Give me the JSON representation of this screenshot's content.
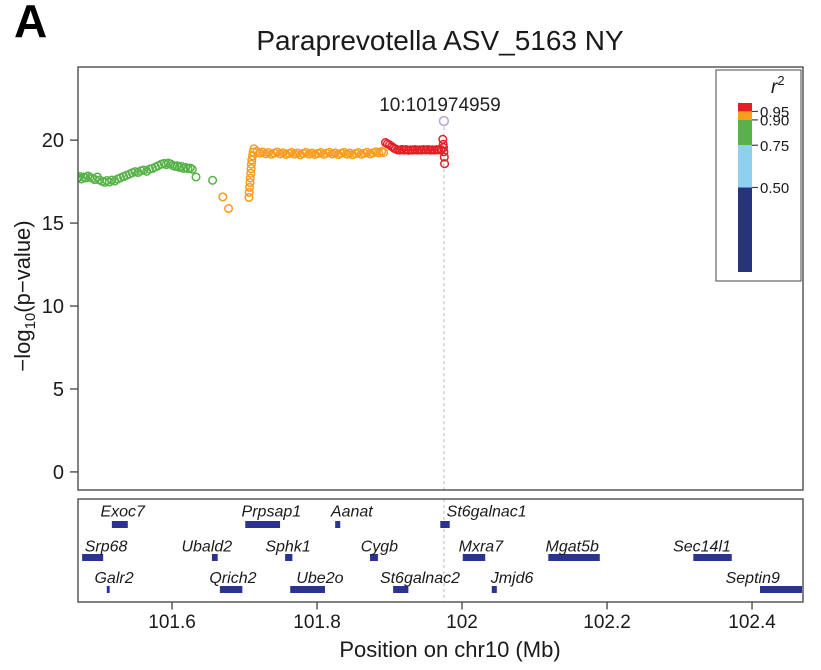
{
  "panel_label": "A",
  "title": "Paraprevotella ASV_5163 NY",
  "axes": {
    "x_label": "Position on chr10 (Mb)",
    "y_label_pre": "−log",
    "y_label_sub": "10",
    "y_label_post": "(p−value)",
    "x_tick_labels": [
      "101.6",
      "101.8",
      "102",
      "102.2",
      "102.4"
    ],
    "y_tick_labels": [
      "0",
      "5",
      "10",
      "15",
      "20"
    ]
  },
  "annotation": {
    "lead_label": "10:101974959"
  },
  "legend": {
    "title_base": "r",
    "title_sup": "2",
    "tick_labels": [
      "0.95",
      "0.90",
      "0.75",
      "0.50"
    ]
  },
  "colors": {
    "red": "#e31f26",
    "orange": "#f79c1d",
    "green": "#57b349",
    "lightblue": "#8fd0ee",
    "navy": "#28337e",
    "lead": "#b7a6d7",
    "gene_bar": "#2a3490",
    "dash": "#c9c9ce",
    "axis": "#4d4d4d"
  },
  "chart_data": {
    "type": "scatter",
    "title": "Paraprevotella ASV_5163 NY",
    "xlabel": "Position on chr10 (Mb)",
    "ylabel": "-log10(p-value)",
    "xlim": [
      101.4703,
      102.4703
    ],
    "ylim": [
      -1.09,
      24.41
    ],
    "x_ticks": [
      101.6,
      101.8,
      102.0,
      102.2,
      102.4
    ],
    "y_ticks": [
      0,
      5,
      10,
      15,
      20
    ],
    "grid": false,
    "lead_snp": {
      "label": "10:101974959",
      "x": 101.975,
      "y": 21.15
    },
    "series": [
      {
        "name": "r2 0.75-0.90",
        "color_key": "green",
        "points": [
          [
            101.47,
            17.72
          ],
          [
            101.4725,
            17.8
          ],
          [
            101.475,
            17.66
          ],
          [
            101.478,
            17.78
          ],
          [
            101.481,
            17.72
          ],
          [
            101.484,
            17.84
          ],
          [
            101.487,
            17.76
          ],
          [
            101.49,
            17.7
          ],
          [
            101.4935,
            17.62
          ],
          [
            101.497,
            17.78
          ],
          [
            101.5,
            17.6
          ],
          [
            101.5035,
            17.52
          ],
          [
            101.507,
            17.46
          ],
          [
            101.51,
            17.56
          ],
          [
            101.5135,
            17.48
          ],
          [
            101.517,
            17.6
          ],
          [
            101.521,
            17.54
          ],
          [
            101.525,
            17.66
          ],
          [
            101.529,
            17.73
          ],
          [
            101.533,
            17.8
          ],
          [
            101.537,
            17.88
          ],
          [
            101.541,
            17.95
          ],
          [
            101.545,
            18.03
          ],
          [
            101.549,
            18.1
          ],
          [
            101.553,
            18.05
          ],
          [
            101.557,
            18.15
          ],
          [
            101.561,
            18.2
          ],
          [
            101.565,
            18.12
          ],
          [
            101.569,
            18.25
          ],
          [
            101.573,
            18.3
          ],
          [
            101.577,
            18.38
          ],
          [
            101.581,
            18.46
          ],
          [
            101.585,
            18.55
          ],
          [
            101.589,
            18.6
          ],
          [
            101.592,
            18.52
          ],
          [
            101.595,
            18.62
          ],
          [
            101.598,
            18.56
          ],
          [
            101.601,
            18.48
          ],
          [
            101.604,
            18.42
          ],
          [
            101.607,
            18.46
          ],
          [
            101.61,
            18.36
          ],
          [
            101.613,
            18.42
          ],
          [
            101.616,
            18.3
          ],
          [
            101.619,
            18.36
          ],
          [
            101.622,
            18.28
          ],
          [
            101.625,
            18.32
          ],
          [
            101.628,
            18.24
          ],
          [
            101.633,
            17.78
          ],
          [
            101.656,
            17.58
          ]
        ]
      },
      {
        "name": "r2 0.90-0.95",
        "color_key": "orange",
        "points": [
          [
            101.67,
            16.58
          ],
          [
            101.678,
            15.88
          ],
          [
            101.706,
            16.55
          ],
          [
            101.7065,
            16.85
          ],
          [
            101.707,
            17.15
          ],
          [
            101.7075,
            17.45
          ],
          [
            101.708,
            17.72
          ],
          [
            101.7085,
            18.0
          ],
          [
            101.709,
            18.28
          ],
          [
            101.7095,
            18.55
          ],
          [
            101.71,
            18.8
          ],
          [
            101.711,
            19.05
          ],
          [
            101.712,
            19.28
          ],
          [
            101.713,
            19.48
          ],
          [
            101.717,
            19.32
          ],
          [
            101.721,
            19.22
          ],
          [
            101.725,
            19.28
          ],
          [
            101.729,
            19.18
          ],
          [
            101.733,
            19.25
          ],
          [
            101.737,
            19.15
          ],
          [
            101.741,
            19.22
          ],
          [
            101.745,
            19.28
          ],
          [
            101.749,
            19.18
          ],
          [
            101.753,
            19.24
          ],
          [
            101.757,
            19.14
          ],
          [
            101.761,
            19.2
          ],
          [
            101.765,
            19.26
          ],
          [
            101.769,
            19.16
          ],
          [
            101.773,
            19.22
          ],
          [
            101.777,
            19.12
          ],
          [
            101.781,
            19.2
          ],
          [
            101.785,
            19.26
          ],
          [
            101.789,
            19.16
          ],
          [
            101.793,
            19.22
          ],
          [
            101.797,
            19.14
          ],
          [
            101.801,
            19.2
          ],
          [
            101.805,
            19.25
          ],
          [
            101.809,
            19.15
          ],
          [
            101.813,
            19.21
          ],
          [
            101.817,
            19.27
          ],
          [
            101.821,
            19.17
          ],
          [
            101.825,
            19.23
          ],
          [
            101.829,
            19.13
          ],
          [
            101.833,
            19.2
          ],
          [
            101.837,
            19.26
          ],
          [
            101.841,
            19.16
          ],
          [
            101.845,
            19.22
          ],
          [
            101.849,
            19.12
          ],
          [
            101.853,
            19.19
          ],
          [
            101.857,
            19.25
          ],
          [
            101.861,
            19.15
          ],
          [
            101.865,
            19.21
          ],
          [
            101.869,
            19.27
          ],
          [
            101.873,
            19.17
          ],
          [
            101.877,
            19.23
          ],
          [
            101.881,
            19.3
          ],
          [
            101.885,
            19.24
          ],
          [
            101.889,
            19.32
          ],
          [
            101.892,
            19.26
          ]
        ]
      },
      {
        "name": "r2 0.95-1.00",
        "color_key": "red",
        "points": [
          [
            101.8945,
            19.85
          ],
          [
            101.897,
            19.78
          ],
          [
            101.9,
            19.72
          ],
          [
            101.903,
            19.62
          ],
          [
            101.9055,
            19.54
          ],
          [
            101.908,
            19.47
          ],
          [
            101.911,
            19.42
          ],
          [
            101.914,
            19.4
          ],
          [
            101.917,
            19.44
          ],
          [
            101.92,
            19.4
          ],
          [
            101.923,
            19.43
          ],
          [
            101.926,
            19.39
          ],
          [
            101.929,
            19.42
          ],
          [
            101.932,
            19.4
          ],
          [
            101.935,
            19.43
          ],
          [
            101.938,
            19.4
          ],
          [
            101.941,
            19.42
          ],
          [
            101.944,
            19.4
          ],
          [
            101.947,
            19.43
          ],
          [
            101.95,
            19.41
          ],
          [
            101.953,
            19.43
          ],
          [
            101.956,
            19.4
          ],
          [
            101.959,
            19.42
          ],
          [
            101.962,
            19.4
          ],
          [
            101.965,
            19.43
          ],
          [
            101.968,
            19.41
          ],
          [
            101.971,
            19.42
          ],
          [
            101.9735,
            20.05
          ],
          [
            101.974,
            19.75
          ],
          [
            101.9745,
            19.55
          ],
          [
            101.975,
            19.3
          ],
          [
            101.9755,
            18.98
          ],
          [
            101.976,
            18.58
          ]
        ]
      }
    ],
    "legend": {
      "title": "r2",
      "position": "top-right",
      "segments": [
        {
          "color_key": "red",
          "r2_range": [
            0.95,
            1.0
          ]
        },
        {
          "color_key": "orange",
          "r2_range": [
            0.9,
            0.95
          ]
        },
        {
          "color_key": "green",
          "r2_range": [
            0.75,
            0.9
          ]
        },
        {
          "color_key": "lightblue",
          "r2_range": [
            0.5,
            0.75
          ]
        },
        {
          "color_key": "navy",
          "r2_range": [
            0.0,
            0.5
          ]
        }
      ],
      "tick_values": [
        0.95,
        0.9,
        0.75,
        0.5
      ]
    },
    "genes": [
      {
        "name": "Exoc7",
        "start": 101.517,
        "end": 101.539,
        "row": 0,
        "label_x": 101.532
      },
      {
        "name": "Prpsap1",
        "start": 101.701,
        "end": 101.749,
        "row": 0,
        "label_x": 101.737
      },
      {
        "name": "Aanat",
        "start": 101.825,
        "end": 101.832,
        "row": 0,
        "label_x": 101.848
      },
      {
        "name": "St6galnac1",
        "start": 101.97,
        "end": 101.983,
        "row": 0,
        "label_x": 102.034
      },
      {
        "name": "Srp68",
        "start": 101.476,
        "end": 101.505,
        "row": 1,
        "label_x": 101.509
      },
      {
        "name": "Ubald2",
        "start": 101.655,
        "end": 101.663,
        "row": 1,
        "label_x": 101.648
      },
      {
        "name": "Sphk1",
        "start": 101.756,
        "end": 101.766,
        "row": 1,
        "label_x": 101.76
      },
      {
        "name": "Cygb",
        "start": 101.873,
        "end": 101.884,
        "row": 1,
        "label_x": 101.886
      },
      {
        "name": "Mxra7",
        "start": 102.001,
        "end": 102.032,
        "row": 1,
        "label_x": 102.026
      },
      {
        "name": "Mgat5b",
        "start": 102.119,
        "end": 102.19,
        "row": 1,
        "label_x": 102.152
      },
      {
        "name": "Sec14l1",
        "start": 102.319,
        "end": 102.372,
        "row": 1,
        "label_x": 102.331
      },
      {
        "name": "Galr2",
        "start": 101.51,
        "end": 101.514,
        "row": 2,
        "label_x": 101.52
      },
      {
        "name": "Qrich2",
        "start": 101.666,
        "end": 101.697,
        "row": 2,
        "label_x": 101.684
      },
      {
        "name": "Ube2o",
        "start": 101.763,
        "end": 101.811,
        "row": 2,
        "label_x": 101.804
      },
      {
        "name": "St6galnac2",
        "start": 101.905,
        "end": 101.926,
        "row": 2,
        "label_x": 101.942
      },
      {
        "name": "Jmjd6",
        "start": 102.041,
        "end": 102.048,
        "row": 2,
        "label_x": 102.069
      },
      {
        "name": "Septin9",
        "start": 102.411,
        "end": 102.48,
        "row": 2,
        "label_x": 102.401
      }
    ]
  }
}
